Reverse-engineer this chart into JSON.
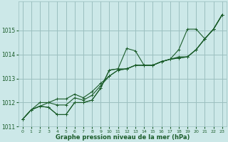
{
  "bg_color": "#cce8e8",
  "grid_color": "#9bbfbf",
  "line_color": "#1a5c2a",
  "xlabel": "Graphe pression niveau de la mer (hPa)",
  "xlim": [
    -0.5,
    23.5
  ],
  "ylim": [
    1011,
    1016.2
  ],
  "yticks": [
    1011,
    1012,
    1013,
    1014,
    1015
  ],
  "xticks": [
    0,
    1,
    2,
    3,
    4,
    5,
    6,
    7,
    8,
    9,
    10,
    11,
    12,
    13,
    14,
    15,
    16,
    17,
    18,
    19,
    20,
    21,
    22,
    23
  ],
  "series": [
    [
      1011.3,
      1011.7,
      1011.85,
      1011.8,
      1011.5,
      1011.5,
      1012.0,
      1012.0,
      1012.1,
      1012.6,
      1013.35,
      1013.4,
      1014.25,
      1014.15,
      1013.55,
      1013.55,
      1013.7,
      1013.8,
      1014.2,
      1015.05,
      1015.05,
      1014.65,
      1015.05,
      1015.65
    ],
    [
      1011.3,
      1011.7,
      1011.85,
      1011.8,
      1011.5,
      1011.5,
      1012.0,
      1012.0,
      1012.1,
      1012.6,
      1013.35,
      1013.4,
      1013.4,
      1013.55,
      1013.55,
      1013.55,
      1013.7,
      1013.8,
      1013.9,
      1013.9,
      1014.2,
      1014.65,
      1015.05,
      1015.65
    ],
    [
      1011.3,
      1011.7,
      1011.85,
      1012.0,
      1011.9,
      1011.9,
      1012.2,
      1012.1,
      1012.3,
      1012.7,
      1013.1,
      1013.35,
      1013.4,
      1013.55,
      1013.55,
      1013.55,
      1013.7,
      1013.8,
      1013.85,
      1013.9,
      1014.2,
      1014.65,
      1015.05,
      1015.65
    ],
    [
      1011.3,
      1011.7,
      1012.0,
      1012.0,
      1012.15,
      1012.15,
      1012.35,
      1012.2,
      1012.45,
      1012.8,
      1013.1,
      1013.35,
      1013.4,
      1013.55,
      1013.55,
      1013.55,
      1013.7,
      1013.8,
      1013.85,
      1013.9,
      1014.2,
      1014.65,
      1015.05,
      1015.65
    ]
  ]
}
